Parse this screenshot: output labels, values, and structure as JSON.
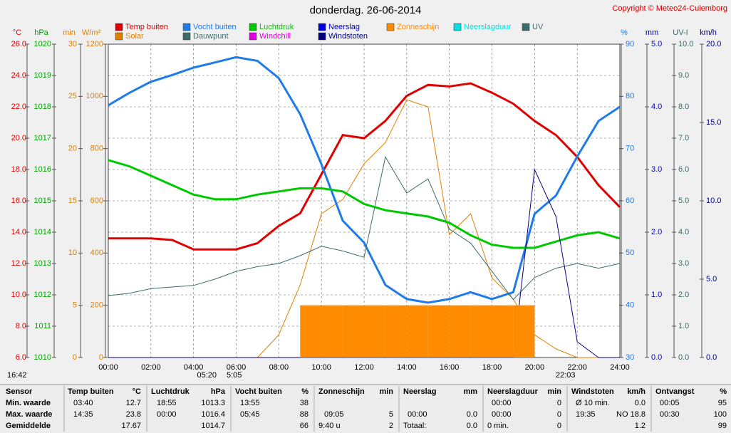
{
  "title": "donderdag. 26-06-2014",
  "copyright": "Copyright © Meteo24-Culemborg",
  "chart_data": {
    "type": "line",
    "x": [
      "00:00",
      "01:00",
      "02:00",
      "03:00",
      "04:00",
      "05:00",
      "06:00",
      "07:00",
      "08:00",
      "09:00",
      "10:00",
      "11:00",
      "12:00",
      "13:00",
      "14:00",
      "15:00",
      "16:00",
      "17:00",
      "18:00",
      "19:00",
      "20:00",
      "21:00",
      "22:00",
      "23:00",
      "24:00"
    ],
    "xticks": [
      "00:00",
      "02:00",
      "04:00",
      "06:00",
      "08:00",
      "10:00",
      "12:00",
      "14:00",
      "16:00",
      "18:00",
      "20:00",
      "22:00",
      "24:00"
    ],
    "grid": true,
    "axes": [
      {
        "label": "°C",
        "color": "#e00000",
        "lim": [
          6,
          26
        ],
        "ticks": [
          {
            "value": 6,
            "label": "6.0"
          },
          {
            "value": 8,
            "label": "8.0"
          },
          {
            "value": 10,
            "label": "10.0"
          },
          {
            "value": 12,
            "label": "12.0"
          },
          {
            "value": 14,
            "label": "14.0"
          },
          {
            "value": 16,
            "label": "16.0"
          },
          {
            "value": 18,
            "label": "18.0"
          },
          {
            "value": 20,
            "label": "20.0"
          },
          {
            "value": 22,
            "label": "22.0"
          },
          {
            "value": 24,
            "label": "24.0"
          },
          {
            "value": 26,
            "label": "26.0"
          }
        ]
      },
      {
        "label": "hPa",
        "color": "#00a000",
        "lim": [
          1010,
          1020
        ],
        "ticks": [
          1010,
          1011,
          1012,
          1013,
          1014,
          1015,
          1016,
          1017,
          1018,
          1019,
          1020
        ]
      },
      {
        "label": "min",
        "color": "#e08000",
        "lim": [
          0,
          30
        ],
        "ticks": [
          0,
          5,
          10,
          15,
          20,
          25,
          30
        ]
      },
      {
        "label": "W/m²",
        "color": "#e08000",
        "lim": [
          0,
          1200
        ],
        "ticks": [
          0,
          200,
          400,
          600,
          800,
          1000,
          1200
        ]
      },
      {
        "label": "%",
        "color": "#1e7be8",
        "lim": [
          30,
          90
        ],
        "ticks": [
          30,
          40,
          50,
          60,
          70,
          80,
          90
        ]
      },
      {
        "label": "mm",
        "color": "#0000b0",
        "lim": [
          0,
          5
        ],
        "ticks": [
          {
            "value": 0,
            "label": "0.0"
          },
          {
            "value": 1,
            "label": "1.0"
          },
          {
            "value": 2,
            "label": "2.0"
          },
          {
            "value": 3,
            "label": "3.0"
          },
          {
            "value": 4,
            "label": "4.0"
          },
          {
            "value": 5,
            "label": "5.0"
          }
        ]
      },
      {
        "label": "UV-I",
        "color": "#3a6a6a",
        "lim": [
          0,
          10
        ],
        "ticks": [
          {
            "value": 0,
            "label": "0.0"
          },
          {
            "value": 1,
            "label": "1.0"
          },
          {
            "value": 2,
            "label": "2.0"
          },
          {
            "value": 3,
            "label": "3.0"
          },
          {
            "value": 4,
            "label": "4.0"
          },
          {
            "value": 5,
            "label": "5.0"
          },
          {
            "value": 6,
            "label": "6.0"
          },
          {
            "value": 7,
            "label": "7.0"
          },
          {
            "value": 8,
            "label": "8.0"
          },
          {
            "value": 9,
            "label": "9.0"
          },
          {
            "value": 10,
            "label": "10.0"
          }
        ]
      },
      {
        "label": "km/h",
        "color": "#000080",
        "lim": [
          0,
          20
        ],
        "ticks": [
          {
            "value": 0,
            "label": "0.0"
          },
          {
            "value": 5,
            "label": "5.0"
          },
          {
            "value": 10,
            "label": "10.0"
          },
          {
            "value": 15,
            "label": "15.0"
          },
          {
            "value": 20,
            "label": "20.0"
          }
        ]
      }
    ],
    "series": [
      {
        "name": "Temp buiten",
        "color": "#e00000",
        "axis": 0,
        "values": [
          13.6,
          13.6,
          13.6,
          13.5,
          12.9,
          12.9,
          12.9,
          13.3,
          14.4,
          15.2,
          17.7,
          20.2,
          20.0,
          21.1,
          22.7,
          23.4,
          23.3,
          23.5,
          22.9,
          22.2,
          21.1,
          20.2,
          18.8,
          17.0,
          15.6
        ]
      },
      {
        "name": "Solar",
        "color": "#e08000",
        "axis": 3,
        "values": [
          0,
          0,
          0,
          0,
          0,
          0,
          0,
          0,
          87,
          278,
          551,
          605,
          742,
          823,
          987,
          960,
          470,
          551,
          305,
          224,
          87,
          33,
          0,
          0,
          0
        ]
      },
      {
        "name": "Vocht buiten",
        "color": "#1e7be8",
        "axis": 4,
        "values": [
          78.3,
          80.7,
          82.8,
          84.1,
          85.5,
          86.5,
          87.5,
          86.8,
          83.5,
          76.6,
          67,
          56.2,
          52,
          43.9,
          41.2,
          40.5,
          41.2,
          42.5,
          41.2,
          42.5,
          57.5,
          61,
          68.5,
          75.3,
          78
        ]
      },
      {
        "name": "Dauwpunt",
        "color": "#3d6b6b",
        "axis": 0,
        "values": [
          9.95,
          10.1,
          10.4,
          10.5,
          10.6,
          11,
          11.5,
          11.8,
          12,
          12.5,
          13.1,
          12.8,
          12.4,
          18.8,
          16.5,
          17.4,
          14.2,
          13.3,
          11.5,
          9.7,
          11.1,
          11.7,
          12,
          11.7,
          12
        ]
      },
      {
        "name": "Luchtdruk",
        "color": "#00c800",
        "axis": 1,
        "values": [
          1016.3,
          1016.1,
          1015.8,
          1015.5,
          1015.2,
          1015.05,
          1015.05,
          1015.2,
          1015.3,
          1015.4,
          1015.4,
          1015.3,
          1014.9,
          1014.7,
          1014.6,
          1014.5,
          1014.3,
          1013.9,
          1013.6,
          1013.5,
          1013.5,
          1013.7,
          1013.9,
          1014.0,
          1013.8
        ]
      },
      {
        "name": "Windchill",
        "color": "#e000e0",
        "axis": 0
      },
      {
        "name": "Neerslag",
        "color": "#0000e0",
        "axis": 5
      },
      {
        "name": "Windstoten",
        "color": "#000080",
        "axis": 7,
        "values": [
          0,
          0,
          0,
          0,
          0,
          0,
          0,
          0,
          0,
          0,
          0,
          0,
          0,
          0,
          0,
          0,
          0,
          0,
          0,
          0,
          12,
          9,
          1,
          0,
          0
        ]
      },
      {
        "name": "Zonneschijn",
        "color": "#ff8c00",
        "axis": 2,
        "bars": true,
        "values": [
          0,
          0,
          0,
          0,
          0,
          0,
          0,
          0,
          0,
          5,
          5,
          5,
          5,
          5,
          5,
          5,
          5,
          5,
          5,
          5,
          0,
          0,
          0,
          0,
          0
        ]
      },
      {
        "name": "Neerslagduur",
        "color": "#00e0e0",
        "axis": 2
      },
      {
        "name": "UV",
        "color": "#3a6a6a",
        "axis": 6
      }
    ],
    "annotations": [
      "16:42",
      "05:20",
      "5:05",
      "22:03"
    ]
  },
  "table": {
    "header": [
      "Sensor",
      "Temp buiten",
      "°C",
      "Luchtdruk",
      "hPa",
      "Vocht buiten",
      "%",
      "Zonneschijn",
      "min",
      "Neerslag",
      "mm",
      "Neerslagduur",
      "min",
      "Windstoten",
      "km/h",
      "Ontvangst",
      "%"
    ],
    "rows": [
      [
        "Min. waarde",
        "03:40",
        "12.7",
        "18:55",
        "1013.3",
        "13:55",
        "38",
        "00:00",
        "0",
        "Ø 10 min.",
        "0.0",
        "00:05",
        "95"
      ],
      [
        "Max. waarde",
        "14:35",
        "23.8",
        "00:00",
        "1016.4",
        "05:45",
        "88",
        "09:05",
        "5",
        "00:00",
        "0.0",
        "00:00",
        "0",
        "19:35",
        "NO 18.8",
        "00:30",
        "100"
      ],
      [
        "Gemiddelde",
        "17.67",
        "1014.7",
        "66",
        "9:40 u",
        "2",
        "Totaal:",
        "0.0",
        "0 min.",
        "0",
        "1.2",
        "99"
      ]
    ]
  }
}
